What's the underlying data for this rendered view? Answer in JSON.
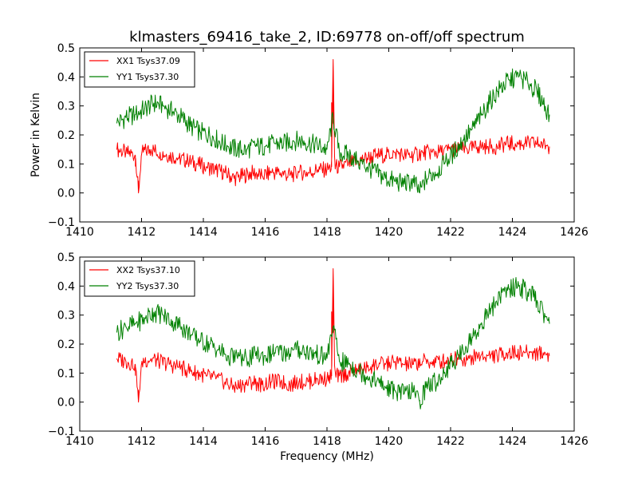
{
  "chart_data": [
    {
      "type": "line",
      "title": "klmasters_69416_take_2, ID:69778 on-off/off spectrum",
      "xlabel": "",
      "ylabel": "Power in Kelvin",
      "xlim": [
        1410,
        1426
      ],
      "ylim": [
        -0.1,
        0.5
      ],
      "xticks": [
        "1410",
        "1412",
        "1414",
        "1416",
        "1418",
        "1420",
        "1422",
        "1424",
        "1426"
      ],
      "yticks": [
        "−0.1",
        "0.0",
        "0.1",
        "0.2",
        "0.3",
        "0.4",
        "0.5"
      ],
      "grid": false,
      "legend_position": "top-left",
      "series": [
        {
          "name": "XX1 Tsys37.09",
          "color": "#ff0000",
          "x": [
            1411.2,
            1411.5,
            1411.8,
            1411.9,
            1412.0,
            1412.3,
            1412.6,
            1412.9,
            1413.2,
            1413.5,
            1413.8,
            1414.1,
            1414.4,
            1414.7,
            1415.0,
            1415.3,
            1415.6,
            1415.9,
            1416.2,
            1416.5,
            1416.8,
            1417.1,
            1417.4,
            1417.7,
            1418.0,
            1418.15,
            1418.2,
            1418.25,
            1418.4,
            1418.7,
            1419.0,
            1419.3,
            1419.6,
            1419.9,
            1420.2,
            1420.5,
            1420.8,
            1421.1,
            1421.4,
            1421.7,
            1422.0,
            1422.3,
            1422.6,
            1422.9,
            1423.2,
            1423.5,
            1423.8,
            1424.1,
            1424.4,
            1424.7,
            1425.0,
            1425.2
          ],
          "values": [
            0.15,
            0.14,
            0.13,
            0.0,
            0.14,
            0.15,
            0.14,
            0.13,
            0.12,
            0.11,
            0.1,
            0.09,
            0.08,
            0.07,
            0.05,
            0.06,
            0.07,
            0.06,
            0.07,
            0.07,
            0.06,
            0.07,
            0.07,
            0.08,
            0.08,
            0.09,
            0.46,
            0.09,
            0.09,
            0.1,
            0.11,
            0.12,
            0.13,
            0.13,
            0.14,
            0.13,
            0.13,
            0.14,
            0.14,
            0.14,
            0.15,
            0.15,
            0.15,
            0.16,
            0.16,
            0.16,
            0.17,
            0.17,
            0.17,
            0.17,
            0.17,
            0.16
          ]
        },
        {
          "name": "YY1 Tsys37.30",
          "color": "#008000",
          "x": [
            1411.2,
            1411.5,
            1411.8,
            1412.1,
            1412.4,
            1412.7,
            1413.0,
            1413.3,
            1413.6,
            1413.9,
            1414.2,
            1414.5,
            1414.8,
            1415.1,
            1415.4,
            1415.7,
            1416.0,
            1416.3,
            1416.6,
            1416.9,
            1417.2,
            1417.5,
            1417.8,
            1418.0,
            1418.2,
            1418.4,
            1418.7,
            1419.0,
            1419.3,
            1419.6,
            1419.9,
            1420.2,
            1420.5,
            1420.8,
            1421.0,
            1421.2,
            1421.5,
            1421.8,
            1422.1,
            1422.4,
            1422.7,
            1423.0,
            1423.3,
            1423.6,
            1423.9,
            1424.2,
            1424.5,
            1424.8,
            1425.0,
            1425.2
          ],
          "values": [
            0.24,
            0.26,
            0.27,
            0.29,
            0.31,
            0.3,
            0.28,
            0.26,
            0.23,
            0.21,
            0.2,
            0.18,
            0.16,
            0.15,
            0.15,
            0.16,
            0.16,
            0.17,
            0.17,
            0.18,
            0.18,
            0.17,
            0.16,
            0.15,
            0.26,
            0.14,
            0.13,
            0.11,
            0.09,
            0.07,
            0.05,
            0.04,
            0.03,
            0.04,
            0.0,
            0.05,
            0.07,
            0.1,
            0.14,
            0.18,
            0.22,
            0.27,
            0.32,
            0.36,
            0.39,
            0.4,
            0.38,
            0.35,
            0.31,
            0.27
          ]
        }
      ]
    },
    {
      "type": "line",
      "title": "",
      "xlabel": "Frequency (MHz)",
      "ylabel": "",
      "xlim": [
        1410,
        1426
      ],
      "ylim": [
        -0.1,
        0.5
      ],
      "xticks": [
        "1410",
        "1412",
        "1414",
        "1416",
        "1418",
        "1420",
        "1422",
        "1424",
        "1426"
      ],
      "yticks": [
        "−0.1",
        "0.0",
        "0.1",
        "0.2",
        "0.3",
        "0.4",
        "0.5"
      ],
      "grid": false,
      "legend_position": "top-left",
      "series": [
        {
          "name": "XX2 Tsys37.10",
          "color": "#ff0000",
          "x": [
            1411.2,
            1411.5,
            1411.8,
            1411.9,
            1412.0,
            1412.3,
            1412.6,
            1412.9,
            1413.2,
            1413.5,
            1413.8,
            1414.1,
            1414.4,
            1414.7,
            1415.0,
            1415.3,
            1415.6,
            1415.9,
            1416.2,
            1416.5,
            1416.8,
            1417.1,
            1417.4,
            1417.7,
            1418.0,
            1418.15,
            1418.2,
            1418.25,
            1418.4,
            1418.7,
            1419.0,
            1419.3,
            1419.6,
            1419.9,
            1420.2,
            1420.5,
            1420.8,
            1421.1,
            1421.4,
            1421.7,
            1422.0,
            1422.3,
            1422.6,
            1422.9,
            1423.2,
            1423.5,
            1423.8,
            1424.1,
            1424.4,
            1424.7,
            1425.0,
            1425.2
          ],
          "values": [
            0.15,
            0.14,
            0.13,
            0.0,
            0.14,
            0.15,
            0.14,
            0.13,
            0.12,
            0.11,
            0.1,
            0.09,
            0.08,
            0.07,
            0.05,
            0.06,
            0.07,
            0.06,
            0.07,
            0.07,
            0.06,
            0.07,
            0.07,
            0.08,
            0.08,
            0.09,
            0.46,
            0.09,
            0.09,
            0.1,
            0.11,
            0.12,
            0.13,
            0.13,
            0.14,
            0.13,
            0.13,
            0.14,
            0.14,
            0.14,
            0.15,
            0.15,
            0.15,
            0.16,
            0.16,
            0.16,
            0.17,
            0.17,
            0.17,
            0.17,
            0.17,
            0.16
          ]
        },
        {
          "name": "YY2 Tsys37.30",
          "color": "#008000",
          "x": [
            1411.2,
            1411.5,
            1411.8,
            1412.1,
            1412.4,
            1412.7,
            1413.0,
            1413.3,
            1413.6,
            1413.9,
            1414.2,
            1414.5,
            1414.8,
            1415.1,
            1415.4,
            1415.7,
            1416.0,
            1416.3,
            1416.6,
            1416.9,
            1417.2,
            1417.5,
            1417.8,
            1418.0,
            1418.2,
            1418.4,
            1418.7,
            1419.0,
            1419.3,
            1419.6,
            1419.9,
            1420.2,
            1420.5,
            1420.8,
            1421.0,
            1421.2,
            1421.5,
            1421.8,
            1422.1,
            1422.4,
            1422.7,
            1423.0,
            1423.3,
            1423.6,
            1423.9,
            1424.2,
            1424.5,
            1424.8,
            1425.0,
            1425.2
          ],
          "values": [
            0.24,
            0.26,
            0.27,
            0.29,
            0.31,
            0.3,
            0.28,
            0.26,
            0.23,
            0.21,
            0.2,
            0.18,
            0.16,
            0.15,
            0.15,
            0.16,
            0.16,
            0.17,
            0.17,
            0.18,
            0.18,
            0.17,
            0.16,
            0.15,
            0.26,
            0.14,
            0.13,
            0.11,
            0.09,
            0.07,
            0.05,
            0.04,
            0.03,
            0.04,
            0.0,
            0.05,
            0.07,
            0.1,
            0.14,
            0.18,
            0.22,
            0.27,
            0.32,
            0.36,
            0.39,
            0.4,
            0.38,
            0.35,
            0.31,
            0.27
          ]
        }
      ]
    }
  ]
}
